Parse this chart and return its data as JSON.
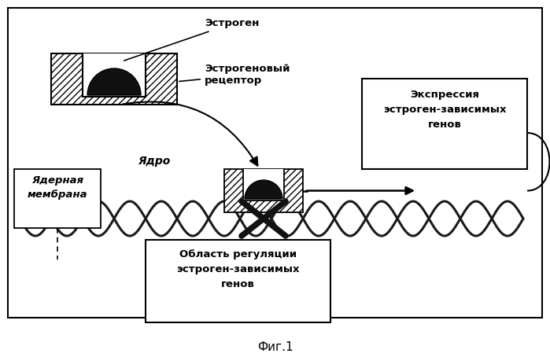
{
  "title": "Фиг.1",
  "bg_color": "#ffffff",
  "label_estrogen": "Эстроген",
  "label_receptor": "Эстрогеновый\nрецептор",
  "label_nucleus": "Ядро",
  "label_membrane": "Ядерная\nмембрана",
  "label_expression": "Экспрессия\nэстроген-зависимых\nгенов",
  "label_regulation": "Область регуляции\nэстроген-зависимых\nгенов"
}
